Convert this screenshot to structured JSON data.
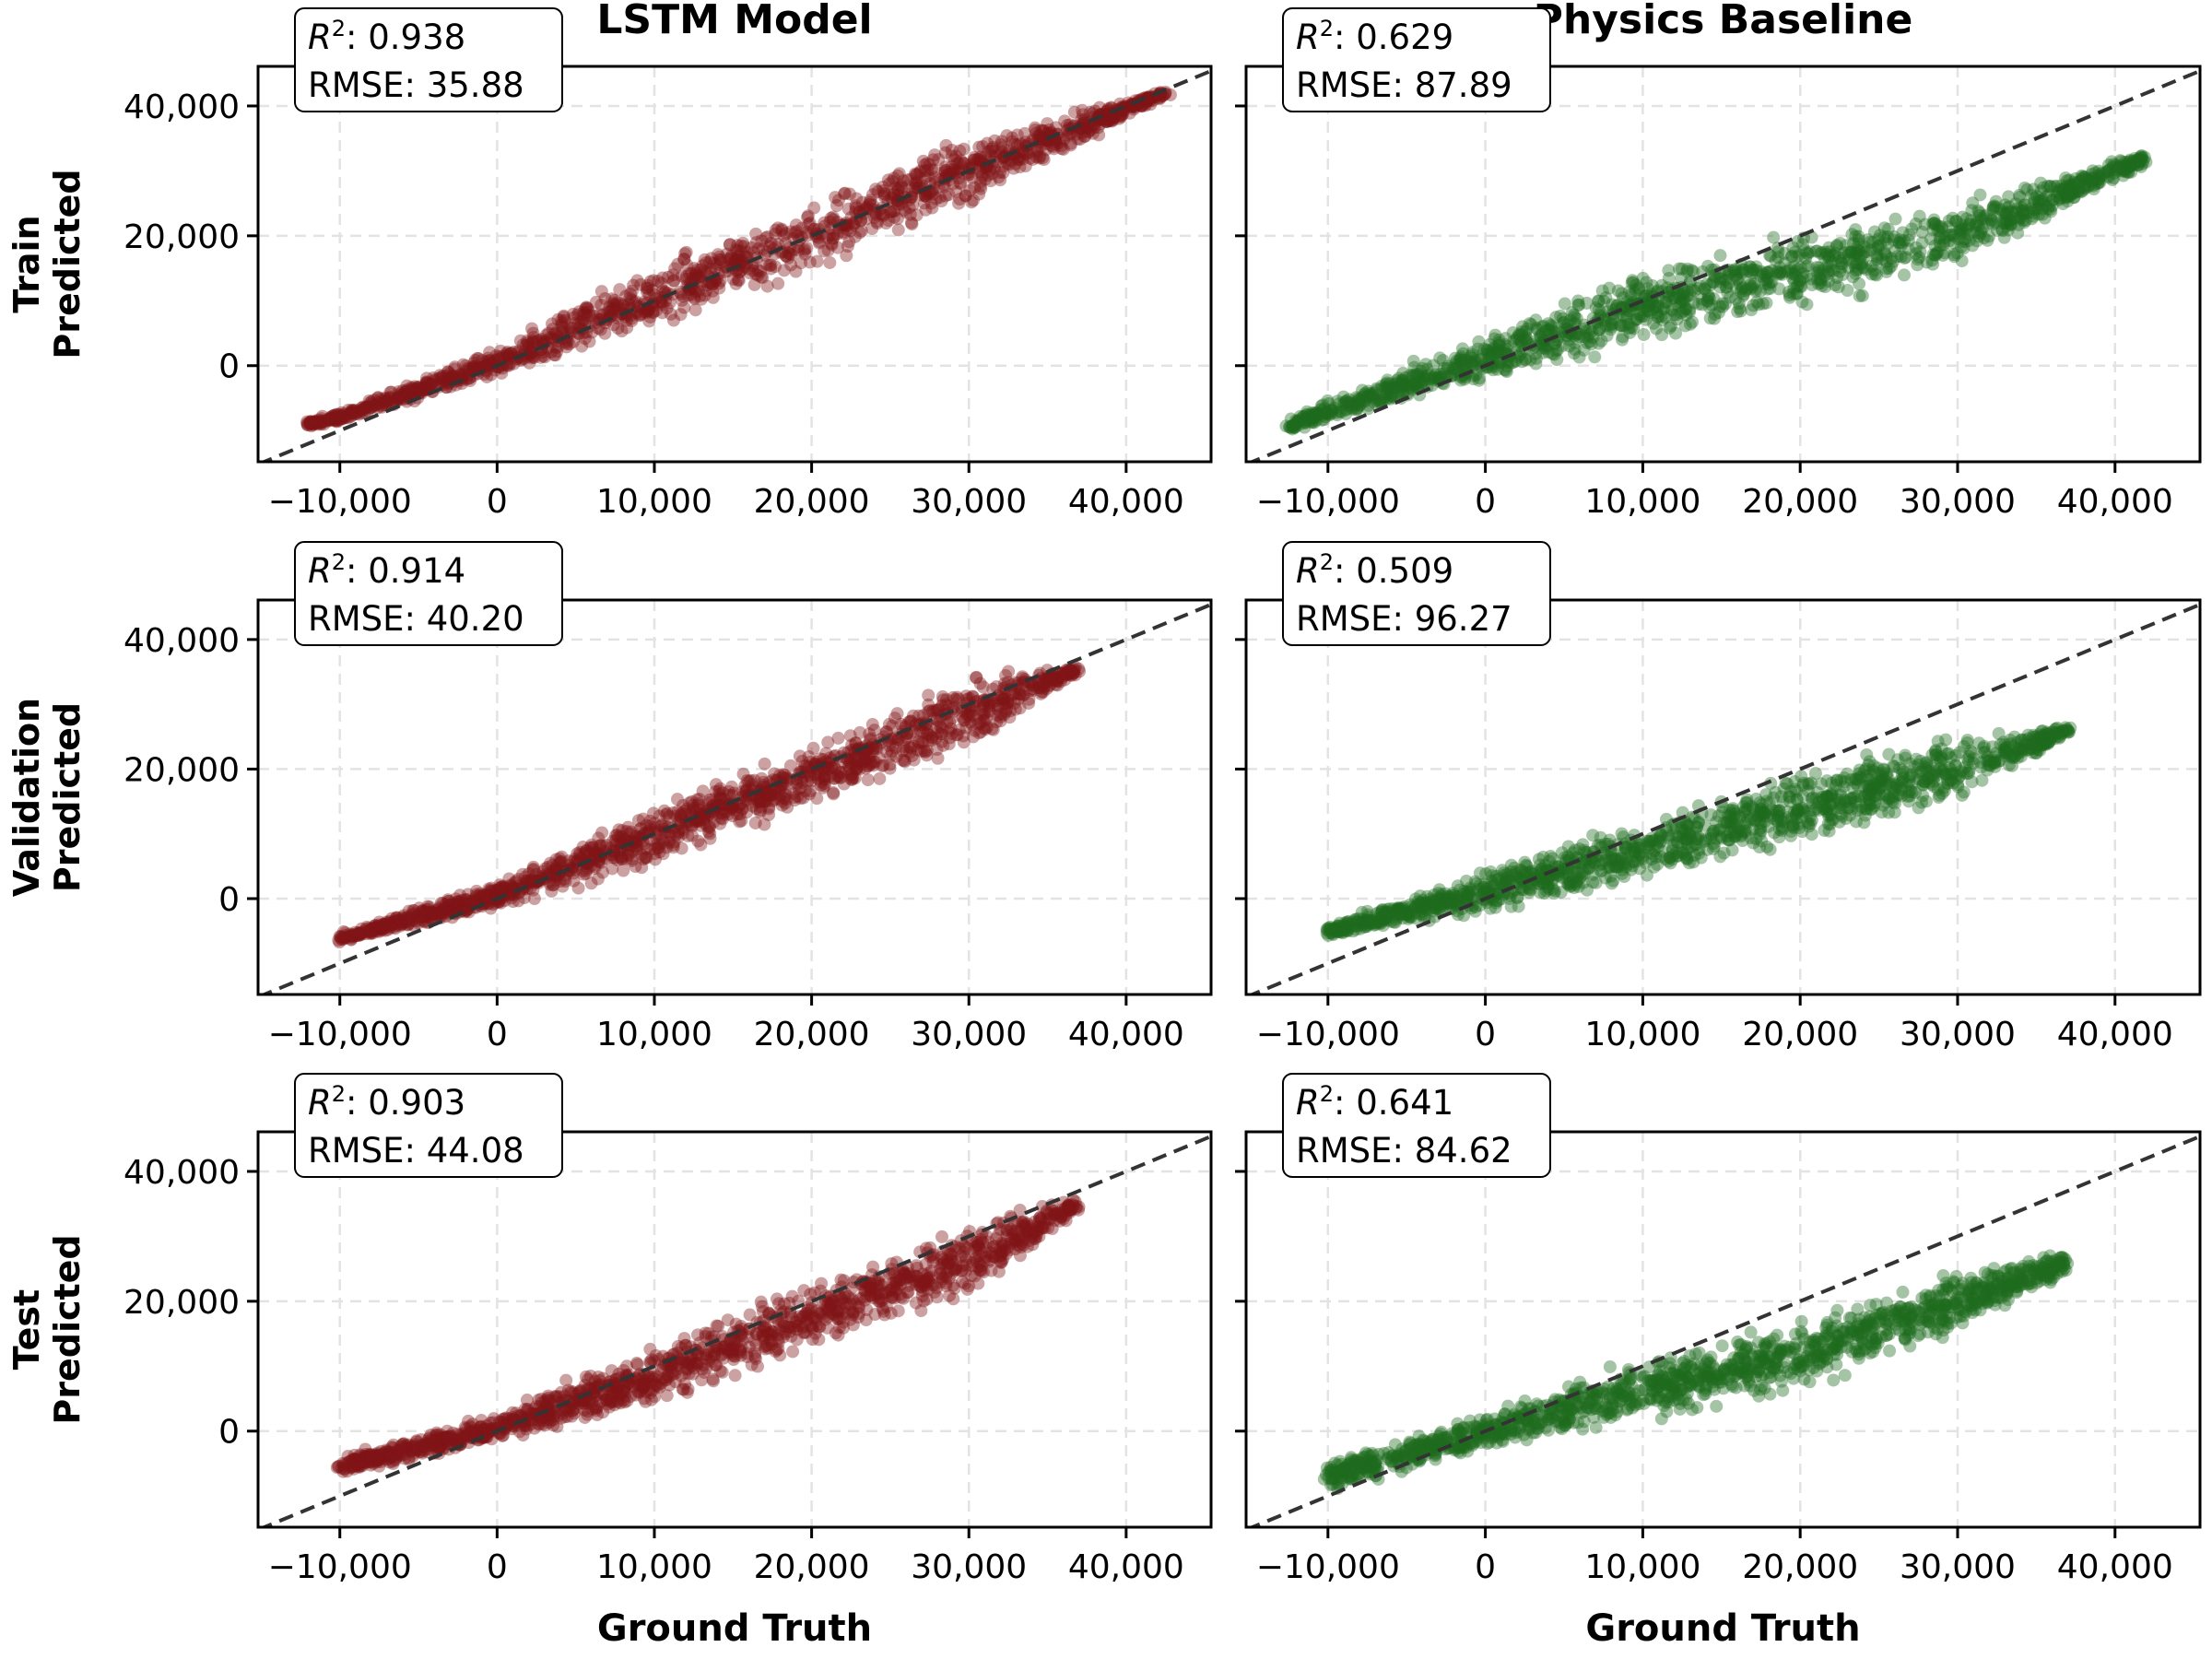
{
  "chart_data": {
    "type": "scatter",
    "columns": [
      "LSTM Model",
      "Physics Baseline"
    ],
    "rows": [
      "Train\nPredicted",
      "Validation\nPredicted",
      "Test\nPredicted"
    ],
    "row_labels": [
      [
        "Train",
        "Predicted"
      ],
      [
        "Validation",
        "Predicted"
      ],
      [
        "Test",
        "Predicted"
      ]
    ],
    "xlabel": "Ground Truth",
    "xlim": [
      -15200,
      45400
    ],
    "ylim": [
      -14800,
      46100
    ],
    "xticks": [
      -10000,
      0,
      10000,
      20000,
      30000,
      40000
    ],
    "xtick_labels": [
      "−10,000",
      "0",
      "10,000",
      "20,000",
      "30,000",
      "40,000"
    ],
    "yticks": [
      0,
      20000,
      40000
    ],
    "ytick_labels": [
      "0",
      "20,000",
      "40,000"
    ],
    "grid": true,
    "reference_line": "y = x (dashed)",
    "colors": {
      "LSTM Model": "#7f1416",
      "Physics Baseline": "#1e6b1e",
      "reference": "#333333"
    },
    "panels": [
      {
        "row": 0,
        "col": 0,
        "r2_label": "R",
        "r2_value": ": 0.938",
        "rmse": "RMSE: 35.88",
        "cloud": [
          [
            -12000,
            -9500,
            -8500
          ],
          [
            -10000,
            -9000,
            -7000
          ],
          [
            0,
            -2000,
            3000
          ],
          [
            10000,
            5000,
            17000
          ],
          [
            20000,
            14000,
            25000
          ],
          [
            30000,
            24000,
            36000
          ],
          [
            42500,
            41500,
            42500
          ]
        ]
      },
      {
        "row": 0,
        "col": 1,
        "r2_label": "R",
        "r2_value": ": 0.629",
        "rmse": "RMSE: 87.89",
        "cloud": [
          [
            -12500,
            -10000,
            -8500
          ],
          [
            -10000,
            -9000,
            -5000
          ],
          [
            0,
            -3000,
            5000
          ],
          [
            10000,
            3000,
            15000
          ],
          [
            20000,
            8000,
            21000
          ],
          [
            30000,
            14000,
            26000
          ],
          [
            42000,
            31000,
            33000
          ]
        ]
      },
      {
        "row": 1,
        "col": 0,
        "r2_label": "R",
        "r2_value": ": 0.914",
        "rmse": "RMSE: 40.20",
        "cloud": [
          [
            -10000,
            -7000,
            -5500
          ],
          [
            0,
            -2000,
            3000
          ],
          [
            10000,
            5000,
            15000
          ],
          [
            20000,
            14000,
            24000
          ],
          [
            30000,
            22000,
            35000
          ],
          [
            37000,
            35000,
            36000
          ]
        ]
      },
      {
        "row": 1,
        "col": 1,
        "r2_label": "R",
        "r2_value": ": 0.509",
        "rmse": "RMSE: 96.27",
        "cloud": [
          [
            -10000,
            -6000,
            -4000
          ],
          [
            0,
            -3000,
            5000
          ],
          [
            10000,
            2000,
            13000
          ],
          [
            20000,
            8000,
            20000
          ],
          [
            30000,
            14000,
            26000
          ],
          [
            37000,
            25000,
            27000
          ]
        ]
      },
      {
        "row": 2,
        "col": 0,
        "r2_label": "R",
        "r2_value": ": 0.903",
        "rmse": "RMSE: 44.08",
        "cloud": [
          [
            -10000,
            -7000,
            -4000
          ],
          [
            0,
            -2000,
            3000
          ],
          [
            10000,
            3000,
            14000
          ],
          [
            20000,
            12000,
            24000
          ],
          [
            30000,
            20000,
            33000
          ],
          [
            37000,
            34000,
            36000
          ]
        ]
      },
      {
        "row": 2,
        "col": 1,
        "r2_label": "R",
        "r2_value": ": 0.641",
        "rmse": "RMSE: 84.62",
        "cloud": [
          [
            -10000,
            -10000,
            -4000
          ],
          [
            0,
            -3000,
            3000
          ],
          [
            10000,
            1000,
            12000
          ],
          [
            20000,
            6000,
            18000
          ],
          [
            30000,
            14000,
            26000
          ],
          [
            37000,
            24000,
            28000
          ]
        ]
      }
    ]
  }
}
